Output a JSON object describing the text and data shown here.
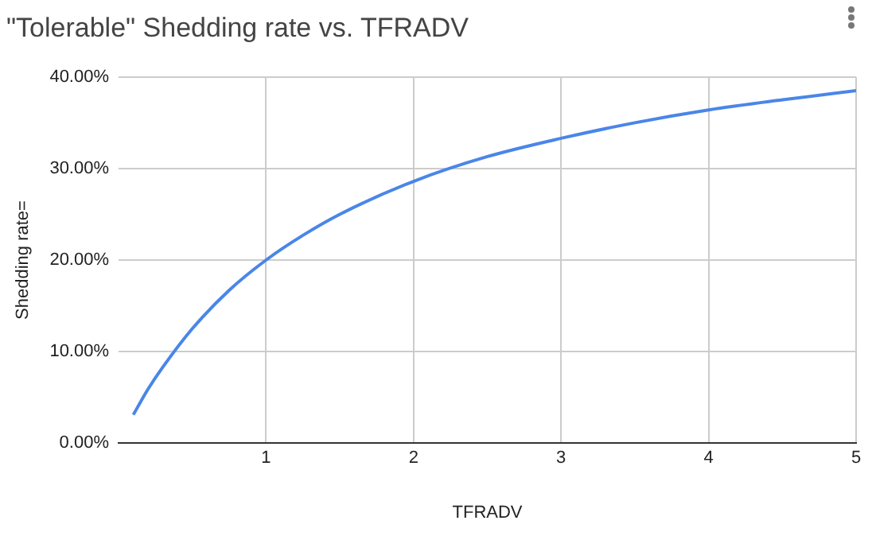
{
  "chart_data": {
    "type": "line",
    "title": "\"Tolerable\" Shedding rate vs. TFRADV",
    "xlabel": "TFRADV",
    "ylabel": "Shedding rate=",
    "x": [
      0.1,
      0.2,
      0.3,
      0.5,
      0.75,
      1,
      1.25,
      1.5,
      2,
      2.5,
      3,
      3.5,
      4,
      4.5,
      5
    ],
    "series": [
      {
        "color": "#4a86e8",
        "values": [
          3.1,
          5.9,
          8.3,
          12.5,
          16.7,
          20.0,
          22.7,
          25.0,
          28.6,
          31.3,
          33.3,
          35.0,
          36.4,
          37.5,
          38.5
        ]
      }
    ],
    "xlim": [
      0,
      5
    ],
    "xticks": [
      1,
      2,
      3,
      4,
      5
    ],
    "ylim": [
      0,
      40
    ],
    "yticks": [
      {
        "value": 0,
        "label": "0.00%"
      },
      {
        "value": 10,
        "label": "10.00%"
      },
      {
        "value": 20,
        "label": "20.00%"
      },
      {
        "value": 30,
        "label": "30.00%"
      },
      {
        "value": 40,
        "label": "40.00%"
      }
    ],
    "grid": true,
    "legend": false,
    "marker": "none",
    "line_style": "solid"
  }
}
